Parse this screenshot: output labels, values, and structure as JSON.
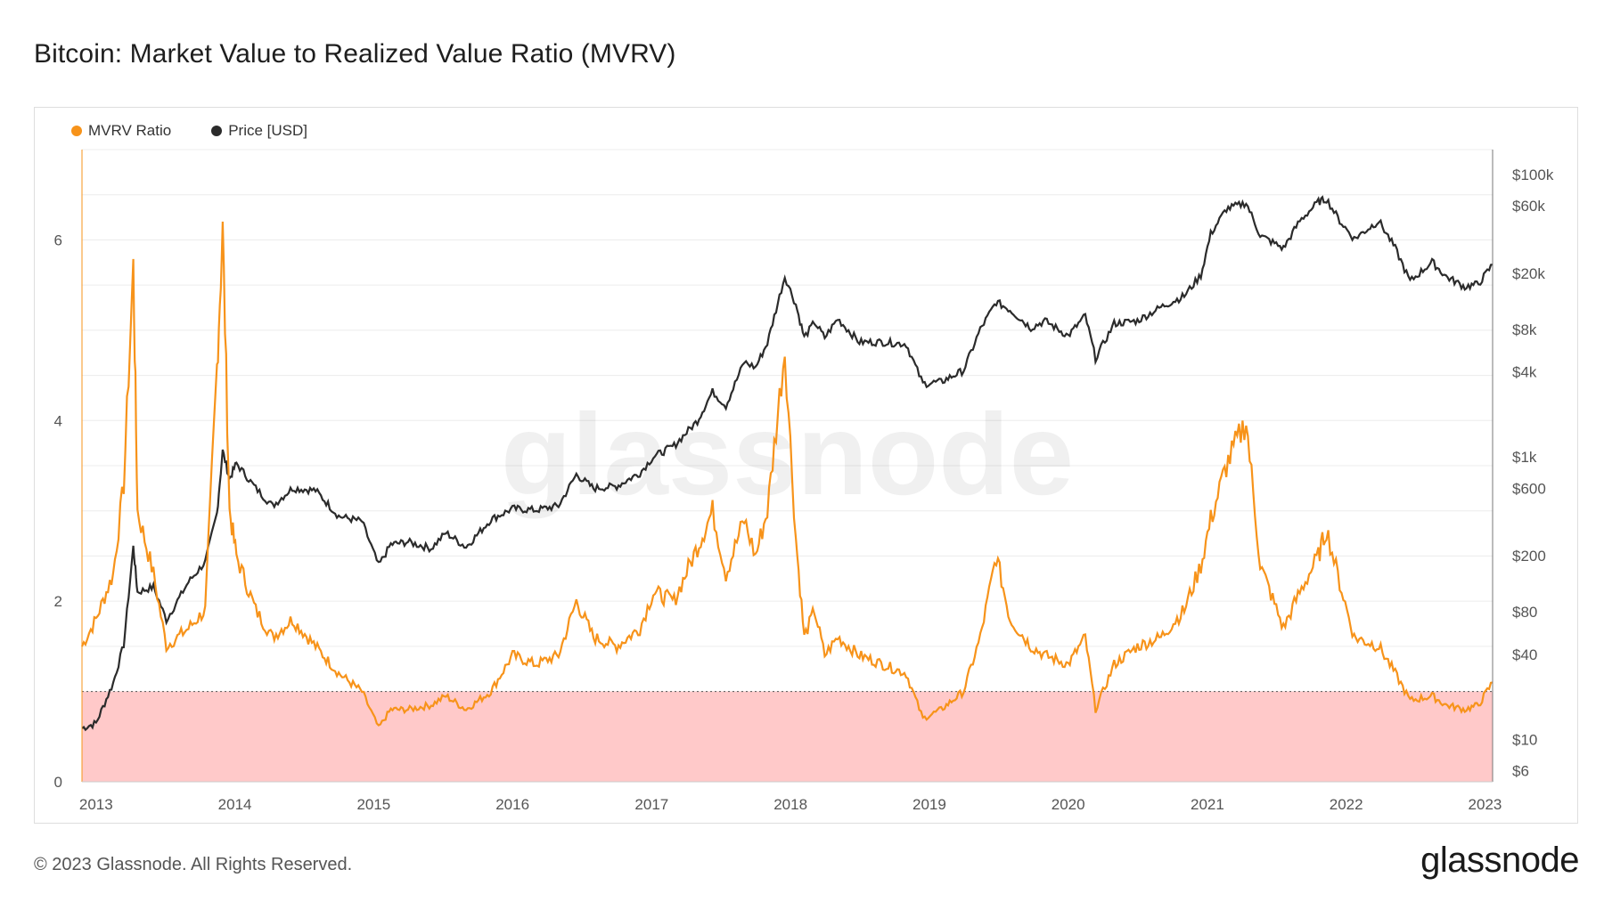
{
  "title": "Bitcoin: Market Value to Realized Value Ratio (MVRV)",
  "footer": "© 2023 Glassnode. All Rights Reserved.",
  "brand": "glassnode",
  "watermark": "glassnode",
  "colors": {
    "mvrv": "#f7931a",
    "price": "#2b2b2b",
    "undervalued_zone": "#ffc9c9",
    "threshold_line": "#555555",
    "grid": "#ececec"
  },
  "chart_data": {
    "type": "line",
    "title": "Bitcoin: Market Value to Realized Value Ratio (MVRV)",
    "legend_placement": "top-left",
    "grid": true,
    "x_range": [
      "2012-11-25",
      "2023-01-21"
    ],
    "x_ticks": [
      "2013",
      "2014",
      "2015",
      "2016",
      "2017",
      "2018",
      "2019",
      "2020",
      "2021",
      "2022",
      "2023"
    ],
    "y_left": {
      "ticks": [
        "0",
        "2",
        "4",
        "6"
      ],
      "range": [
        0,
        7
      ]
    },
    "y_right": {
      "scale": "log",
      "ticks": [
        {
          "label": "$6",
          "value": 6
        },
        {
          "label": "$10",
          "value": 10
        },
        {
          "label": "$40",
          "value": 40
        },
        {
          "label": "$80",
          "value": 80
        },
        {
          "label": "$200",
          "value": 200
        },
        {
          "label": "$600",
          "value": 600
        },
        {
          "label": "$1k",
          "value": 1000
        },
        {
          "label": "$4k",
          "value": 4000
        },
        {
          "label": "$8k",
          "value": 8000
        },
        {
          "label": "$20k",
          "value": 20000
        },
        {
          "label": "$60k",
          "value": 60000
        },
        {
          "label": "$100k",
          "value": 100000
        }
      ],
      "range": [
        5,
        150000
      ]
    },
    "threshold": 1,
    "series": [
      {
        "name": "MVRV Ratio",
        "axis": "left",
        "x": [
          "2012-11-25",
          "2013-01-01",
          "2013-02-15",
          "2013-03-15",
          "2013-04-09",
          "2013-04-20",
          "2013-06-01",
          "2013-07-05",
          "2013-09-01",
          "2013-10-15",
          "2013-11-15",
          "2013-11-30",
          "2013-12-18",
          "2014-01-05",
          "2014-02-25",
          "2014-04-10",
          "2014-06-01",
          "2014-08-01",
          "2014-10-01",
          "2014-12-01",
          "2015-01-14",
          "2015-02-15",
          "2015-04-01",
          "2015-06-01",
          "2015-07-10",
          "2015-09-01",
          "2015-11-05",
          "2016-01-01",
          "2016-03-01",
          "2016-05-01",
          "2016-06-17",
          "2016-08-01",
          "2016-10-01",
          "2016-12-01",
          "2017-01-05",
          "2017-03-01",
          "2017-05-01",
          "2017-06-10",
          "2017-07-15",
          "2017-09-01",
          "2017-10-01",
          "2017-11-01",
          "2017-12-17",
          "2018-01-15",
          "2018-02-06",
          "2018-03-05",
          "2018-04-01",
          "2018-05-05",
          "2018-07-01",
          "2018-09-01",
          "2018-11-01",
          "2018-12-15",
          "2019-02-01",
          "2019-04-01",
          "2019-05-15",
          "2019-06-26",
          "2019-08-01",
          "2019-09-25",
          "2019-11-01",
          "2020-01-01",
          "2020-02-15",
          "2020-03-13",
          "2020-05-01",
          "2020-07-01",
          "2020-09-01",
          "2020-11-01",
          "2020-12-15",
          "2021-01-10",
          "2021-02-20",
          "2021-04-13",
          "2021-05-20",
          "2021-07-20",
          "2021-09-01",
          "2021-10-20",
          "2021-11-10",
          "2021-12-15",
          "2022-01-22",
          "2022-03-28",
          "2022-05-10",
          "2022-06-18",
          "2022-08-15",
          "2022-09-20",
          "2022-11-09",
          "2022-12-15",
          "2023-01-21"
        ],
        "values": [
          1.5,
          1.8,
          2.3,
          3.3,
          5.7,
          3.0,
          2.3,
          1.5,
          1.7,
          1.9,
          4.6,
          6.1,
          3.0,
          2.5,
          1.9,
          1.6,
          1.8,
          1.5,
          1.2,
          1.0,
          0.6,
          0.8,
          0.8,
          0.85,
          0.95,
          0.8,
          1.0,
          1.4,
          1.3,
          1.4,
          2.0,
          1.6,
          1.5,
          1.7,
          2.1,
          2.0,
          2.6,
          3.0,
          2.3,
          2.9,
          2.5,
          3.0,
          4.8,
          2.7,
          1.6,
          1.9,
          1.4,
          1.6,
          1.4,
          1.3,
          1.2,
          0.7,
          0.8,
          1.0,
          1.6,
          2.5,
          1.8,
          1.5,
          1.4,
          1.3,
          1.6,
          0.8,
          1.3,
          1.5,
          1.6,
          1.9,
          2.4,
          2.9,
          3.5,
          4.0,
          2.4,
          1.7,
          2.1,
          2.5,
          2.8,
          2.2,
          1.6,
          1.5,
          1.2,
          0.9,
          0.95,
          0.85,
          0.8,
          0.85,
          1.1
        ]
      },
      {
        "name": "Price [USD]",
        "axis": "right",
        "x": [
          "2012-11-25",
          "2013-01-01",
          "2013-02-15",
          "2013-03-15",
          "2013-04-09",
          "2013-04-20",
          "2013-06-01",
          "2013-07-05",
          "2013-09-01",
          "2013-10-15",
          "2013-11-15",
          "2013-11-30",
          "2013-12-18",
          "2014-01-05",
          "2014-02-25",
          "2014-04-10",
          "2014-06-01",
          "2014-08-01",
          "2014-10-01",
          "2014-12-01",
          "2015-01-14",
          "2015-02-15",
          "2015-04-01",
          "2015-06-01",
          "2015-07-10",
          "2015-09-01",
          "2015-11-05",
          "2016-01-01",
          "2016-03-01",
          "2016-05-01",
          "2016-06-17",
          "2016-08-01",
          "2016-10-01",
          "2016-12-01",
          "2017-01-05",
          "2017-03-01",
          "2017-05-01",
          "2017-06-10",
          "2017-07-15",
          "2017-09-01",
          "2017-10-01",
          "2017-11-01",
          "2017-12-17",
          "2018-01-15",
          "2018-02-06",
          "2018-03-05",
          "2018-04-01",
          "2018-05-05",
          "2018-07-01",
          "2018-09-01",
          "2018-11-01",
          "2018-12-15",
          "2019-02-01",
          "2019-04-01",
          "2019-05-15",
          "2019-06-26",
          "2019-08-01",
          "2019-09-25",
          "2019-11-01",
          "2020-01-01",
          "2020-02-15",
          "2020-03-13",
          "2020-05-01",
          "2020-07-01",
          "2020-09-01",
          "2020-11-01",
          "2020-12-15",
          "2021-01-10",
          "2021-02-20",
          "2021-04-13",
          "2021-05-20",
          "2021-07-20",
          "2021-09-01",
          "2021-10-20",
          "2021-11-10",
          "2021-12-15",
          "2022-01-22",
          "2022-03-28",
          "2022-05-10",
          "2022-06-18",
          "2022-08-15",
          "2022-09-20",
          "2022-11-09",
          "2022-12-15",
          "2023-01-21"
        ],
        "values": [
          12,
          13,
          25,
          47,
          230,
          110,
          120,
          70,
          130,
          180,
          400,
          1100,
          700,
          900,
          600,
          450,
          600,
          580,
          380,
          350,
          170,
          240,
          250,
          225,
          290,
          230,
          360,
          430,
          420,
          450,
          750,
          600,
          620,
          770,
          1000,
          1200,
          1800,
          2900,
          2300,
          4700,
          4300,
          6400,
          19000,
          12000,
          7000,
          9000,
          7000,
          9500,
          6500,
          6500,
          6300,
          3300,
          3400,
          4100,
          8000,
          12500,
          11000,
          8200,
          9200,
          7200,
          10000,
          5000,
          8800,
          9200,
          11500,
          13800,
          19400,
          38000,
          57000,
          63000,
          37000,
          30000,
          47000,
          64000,
          67000,
          47000,
          35000,
          47000,
          30000,
          17500,
          24000,
          19000,
          16000,
          16800,
          23000
        ]
      }
    ]
  }
}
